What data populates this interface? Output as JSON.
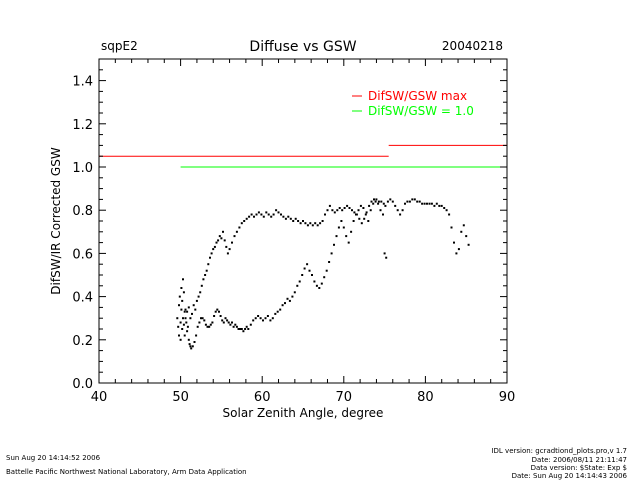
{
  "header": {
    "site": "sqpE2",
    "title": "Diffuse vs GSW",
    "date": "20040218"
  },
  "footer": {
    "timestamp": "Sun Aug 20 14:14:52 2006",
    "credit": "Battelle Pacific Northwest National Laboratory, Arm Data Application",
    "idl_version": "IDL version: gcradtiond_plots.pro,v 1.7",
    "rev_date": "Date: 2006/08/11 21:11:47",
    "data_version": "Data version: $State: Exp $",
    "data_date": "Date: Sun Aug 20 14:14:43 2006"
  },
  "chart_data": {
    "type": "scatter",
    "title": "Diffuse vs GSW",
    "xlabel": "Solar Zenith Angle, degree",
    "ylabel": "DifSW/IR Corrected GSW",
    "xlim": [
      40,
      90
    ],
    "ylim": [
      0.0,
      1.5
    ],
    "xticks": [
      "40",
      "50",
      "60",
      "70",
      "80",
      "90"
    ],
    "yticks": [
      "0.0",
      "0.2",
      "0.4",
      "0.6",
      "0.8",
      "1.0",
      "1.2",
      "1.4"
    ],
    "legend": [
      {
        "label": "DifSW/GSW max",
        "color": "#ff0000"
      },
      {
        "label": "DifSW/GSW = 1.0",
        "color": "#00ff00"
      }
    ],
    "legend_position": "top-right",
    "reference_lines": [
      {
        "name": "DifSW/GSW max",
        "color": "#ff0000",
        "segments": [
          {
            "x": [
              40,
              75.5
            ],
            "y": 1.05
          },
          {
            "x": [
              75.5,
              90
            ],
            "y": 1.1
          }
        ]
      },
      {
        "name": "DifSW/GSW = 1.0",
        "color": "#00ff00",
        "segments": [
          {
            "x": [
              50,
              90
            ],
            "y": 1.0
          }
        ]
      }
    ],
    "series": [
      {
        "color": "#000000",
        "points": [
          [
            49.6,
            0.3
          ],
          [
            49.7,
            0.26
          ],
          [
            49.8,
            0.22
          ],
          [
            49.8,
            0.36
          ],
          [
            49.9,
            0.4
          ],
          [
            50.0,
            0.28
          ],
          [
            50.0,
            0.2
          ],
          [
            50.1,
            0.34
          ],
          [
            50.1,
            0.44
          ],
          [
            50.2,
            0.25
          ],
          [
            50.2,
            0.38
          ],
          [
            50.3,
            0.3
          ],
          [
            50.3,
            0.48
          ],
          [
            50.4,
            0.27
          ],
          [
            50.4,
            0.42
          ],
          [
            50.5,
            0.33
          ],
          [
            50.5,
            0.22
          ],
          [
            50.6,
            0.3
          ],
          [
            50.7,
            0.28
          ],
          [
            50.8,
            0.24
          ],
          [
            50.9,
            0.26
          ],
          [
            51.0,
            0.2
          ],
          [
            51.1,
            0.18
          ],
          [
            51.2,
            0.17
          ],
          [
            51.3,
            0.16
          ],
          [
            51.5,
            0.17
          ],
          [
            51.7,
            0.19
          ],
          [
            51.9,
            0.22
          ],
          [
            52.1,
            0.26
          ],
          [
            52.3,
            0.28
          ],
          [
            52.5,
            0.3
          ],
          [
            52.7,
            0.3
          ],
          [
            52.9,
            0.29
          ],
          [
            53.1,
            0.27
          ],
          [
            53.3,
            0.26
          ],
          [
            53.5,
            0.26
          ],
          [
            53.7,
            0.27
          ],
          [
            53.9,
            0.28
          ],
          [
            54.1,
            0.31
          ],
          [
            54.3,
            0.33
          ],
          [
            54.5,
            0.34
          ],
          [
            54.7,
            0.33
          ],
          [
            54.9,
            0.31
          ],
          [
            55.1,
            0.29
          ],
          [
            55.3,
            0.28
          ],
          [
            55.5,
            0.3
          ],
          [
            55.7,
            0.29
          ],
          [
            55.9,
            0.28
          ],
          [
            56.1,
            0.27
          ],
          [
            56.3,
            0.28
          ],
          [
            56.5,
            0.26
          ],
          [
            56.7,
            0.27
          ],
          [
            56.9,
            0.26
          ],
          [
            57.1,
            0.25
          ],
          [
            57.3,
            0.25
          ],
          [
            57.5,
            0.25
          ],
          [
            57.7,
            0.24
          ],
          [
            57.9,
            0.25
          ],
          [
            58.1,
            0.26
          ],
          [
            58.3,
            0.25
          ],
          [
            58.6,
            0.27
          ],
          [
            58.9,
            0.29
          ],
          [
            59.2,
            0.3
          ],
          [
            59.5,
            0.31
          ],
          [
            59.8,
            0.3
          ],
          [
            60.1,
            0.29
          ],
          [
            60.4,
            0.3
          ],
          [
            60.7,
            0.31
          ],
          [
            61.0,
            0.29
          ],
          [
            61.3,
            0.3
          ],
          [
            61.6,
            0.32
          ],
          [
            61.9,
            0.33
          ],
          [
            62.2,
            0.34
          ],
          [
            62.5,
            0.36
          ],
          [
            62.8,
            0.37
          ],
          [
            63.1,
            0.39
          ],
          [
            63.4,
            0.38
          ],
          [
            63.7,
            0.4
          ],
          [
            64.0,
            0.42
          ],
          [
            64.3,
            0.45
          ],
          [
            64.6,
            0.47
          ],
          [
            64.9,
            0.5
          ],
          [
            65.2,
            0.53
          ],
          [
            65.5,
            0.55
          ],
          [
            65.8,
            0.52
          ],
          [
            66.1,
            0.5
          ],
          [
            66.4,
            0.47
          ],
          [
            66.7,
            0.45
          ],
          [
            67.0,
            0.44
          ],
          [
            67.3,
            0.46
          ],
          [
            67.6,
            0.49
          ],
          [
            67.9,
            0.52
          ],
          [
            68.2,
            0.56
          ],
          [
            68.5,
            0.6
          ],
          [
            68.8,
            0.64
          ],
          [
            69.1,
            0.68
          ],
          [
            69.4,
            0.72
          ],
          [
            69.7,
            0.75
          ],
          [
            70.0,
            0.72
          ],
          [
            70.3,
            0.68
          ],
          [
            70.6,
            0.65
          ],
          [
            70.9,
            0.7
          ],
          [
            71.2,
            0.75
          ],
          [
            71.5,
            0.78
          ],
          [
            71.8,
            0.8
          ],
          [
            72.1,
            0.82
          ],
          [
            72.4,
            0.81
          ],
          [
            72.7,
            0.78
          ],
          [
            73.0,
            0.75
          ],
          [
            73.3,
            0.8
          ],
          [
            73.6,
            0.83
          ],
          [
            73.9,
            0.84
          ],
          [
            74.2,
            0.83
          ],
          [
            74.5,
            0.8
          ],
          [
            74.8,
            0.78
          ],
          [
            75.1,
            0.82
          ],
          [
            75.4,
            0.84
          ],
          [
            75.7,
            0.85
          ],
          [
            76.0,
            0.84
          ],
          [
            76.3,
            0.82
          ],
          [
            76.6,
            0.8
          ],
          [
            76.9,
            0.78
          ],
          [
            77.2,
            0.8
          ],
          [
            77.5,
            0.83
          ],
          [
            77.8,
            0.84
          ],
          [
            78.1,
            0.84
          ],
          [
            78.4,
            0.85
          ],
          [
            78.7,
            0.85
          ],
          [
            79.0,
            0.84
          ],
          [
            79.3,
            0.84
          ],
          [
            79.6,
            0.83
          ],
          [
            79.9,
            0.83
          ],
          [
            80.2,
            0.83
          ],
          [
            80.5,
            0.83
          ],
          [
            80.8,
            0.83
          ],
          [
            81.1,
            0.82
          ],
          [
            81.4,
            0.83
          ],
          [
            81.7,
            0.82
          ],
          [
            82.0,
            0.82
          ],
          [
            82.3,
            0.81
          ],
          [
            82.6,
            0.8
          ],
          [
            82.9,
            0.78
          ],
          [
            83.2,
            0.72
          ],
          [
            83.5,
            0.65
          ],
          [
            83.8,
            0.6
          ],
          [
            84.1,
            0.62
          ],
          [
            84.4,
            0.7
          ],
          [
            84.7,
            0.73
          ],
          [
            85.0,
            0.68
          ],
          [
            85.3,
            0.64
          ],
          [
            50.6,
            0.34
          ],
          [
            50.8,
            0.33
          ],
          [
            51.0,
            0.35
          ],
          [
            51.2,
            0.3
          ],
          [
            51.4,
            0.32
          ],
          [
            51.6,
            0.36
          ],
          [
            51.8,
            0.34
          ],
          [
            52.0,
            0.38
          ],
          [
            52.2,
            0.4
          ],
          [
            52.4,
            0.42
          ],
          [
            52.6,
            0.45
          ],
          [
            52.8,
            0.48
          ],
          [
            53.0,
            0.5
          ],
          [
            53.2,
            0.52
          ],
          [
            53.4,
            0.55
          ],
          [
            53.6,
            0.58
          ],
          [
            53.8,
            0.6
          ],
          [
            54.0,
            0.62
          ],
          [
            54.2,
            0.63
          ],
          [
            54.4,
            0.65
          ],
          [
            54.6,
            0.66
          ],
          [
            54.8,
            0.68
          ],
          [
            55.0,
            0.67
          ],
          [
            55.2,
            0.7
          ],
          [
            55.4,
            0.66
          ],
          [
            55.6,
            0.63
          ],
          [
            55.8,
            0.6
          ],
          [
            56.0,
            0.62
          ],
          [
            56.3,
            0.65
          ],
          [
            56.6,
            0.68
          ],
          [
            56.9,
            0.7
          ],
          [
            57.2,
            0.72
          ],
          [
            57.5,
            0.74
          ],
          [
            57.8,
            0.75
          ],
          [
            58.1,
            0.76
          ],
          [
            58.4,
            0.77
          ],
          [
            58.7,
            0.78
          ],
          [
            59.0,
            0.77
          ],
          [
            59.3,
            0.78
          ],
          [
            59.6,
            0.79
          ],
          [
            59.9,
            0.78
          ],
          [
            60.2,
            0.77
          ],
          [
            60.5,
            0.79
          ],
          [
            60.8,
            0.78
          ],
          [
            61.1,
            0.77
          ],
          [
            61.4,
            0.78
          ],
          [
            61.7,
            0.8
          ],
          [
            62.0,
            0.79
          ],
          [
            62.3,
            0.78
          ],
          [
            62.6,
            0.77
          ],
          [
            62.9,
            0.76
          ],
          [
            63.2,
            0.77
          ],
          [
            63.5,
            0.76
          ],
          [
            63.8,
            0.75
          ],
          [
            64.1,
            0.76
          ],
          [
            64.4,
            0.75
          ],
          [
            64.7,
            0.74
          ],
          [
            65.0,
            0.75
          ],
          [
            65.3,
            0.74
          ],
          [
            65.6,
            0.73
          ],
          [
            65.9,
            0.74
          ],
          [
            66.2,
            0.73
          ],
          [
            66.5,
            0.74
          ],
          [
            66.8,
            0.73
          ],
          [
            67.1,
            0.74
          ],
          [
            67.4,
            0.75
          ],
          [
            67.7,
            0.78
          ],
          [
            68.0,
            0.8
          ],
          [
            68.3,
            0.82
          ],
          [
            68.6,
            0.8
          ],
          [
            68.9,
            0.79
          ],
          [
            69.2,
            0.8
          ],
          [
            69.5,
            0.81
          ],
          [
            69.8,
            0.8
          ],
          [
            70.1,
            0.81
          ],
          [
            70.4,
            0.82
          ],
          [
            70.7,
            0.81
          ],
          [
            71.0,
            0.8
          ],
          [
            71.3,
            0.79
          ],
          [
            71.6,
            0.78
          ],
          [
            71.9,
            0.76
          ],
          [
            72.2,
            0.74
          ],
          [
            72.5,
            0.76
          ],
          [
            72.8,
            0.79
          ],
          [
            73.1,
            0.82
          ],
          [
            73.4,
            0.84
          ],
          [
            73.7,
            0.85
          ],
          [
            74.0,
            0.85
          ],
          [
            74.3,
            0.84
          ],
          [
            74.6,
            0.84
          ],
          [
            74.9,
            0.83
          ],
          [
            75.0,
            0.6
          ],
          [
            75.2,
            0.58
          ]
        ]
      }
    ]
  }
}
